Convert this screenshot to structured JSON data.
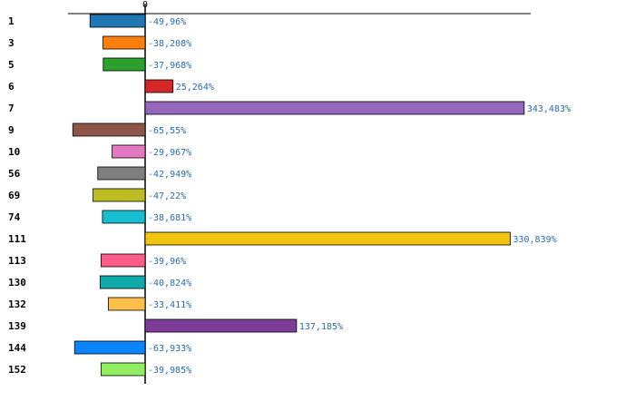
{
  "chart_data": {
    "type": "bar",
    "orientation": "horizontal",
    "title": "",
    "xlabel": "",
    "ylabel": "",
    "zero_label": "0",
    "xlim": [
      -100,
      370
    ],
    "grid": false,
    "legend": "none",
    "categories": [
      "1",
      "3",
      "5",
      "6",
      "7",
      "9",
      "10",
      "56",
      "69",
      "74",
      "111",
      "113",
      "130",
      "132",
      "139",
      "144",
      "152"
    ],
    "values": [
      -49.96,
      -38.208,
      -37.968,
      25.264,
      343.483,
      -65.55,
      -29.967,
      -42.949,
      -47.22,
      -38.681,
      330.839,
      -39.96,
      -40.824,
      -33.411,
      137.185,
      -63.933,
      -39.985
    ],
    "value_labels": [
      "-49,96%",
      "-38,208%",
      "-37,968%",
      "25,264%",
      "343,483%",
      "-65,55%",
      "-29,967%",
      "-42,949%",
      "-47,22%",
      "-38,681%",
      "330,839%",
      "-39,96%",
      "-40,824%",
      "-33,411%",
      "137,185%",
      "-63,933%",
      "-39,985%"
    ],
    "colors": [
      "#1f77b4",
      "#ff7f0e",
      "#2ca02c",
      "#d62728",
      "#9467bd",
      "#8c564b",
      "#e377c2",
      "#7f7f7f",
      "#bcbd22",
      "#17becf",
      "#f1c40f",
      "#ff5c8a",
      "#10a9a9",
      "#fcbf49",
      "#7d3c98",
      "#0a84ff",
      "#90ee60"
    ],
    "highlight_category": "74",
    "highlight_color": "#cc0000",
    "label_color": "#2a6db0"
  }
}
